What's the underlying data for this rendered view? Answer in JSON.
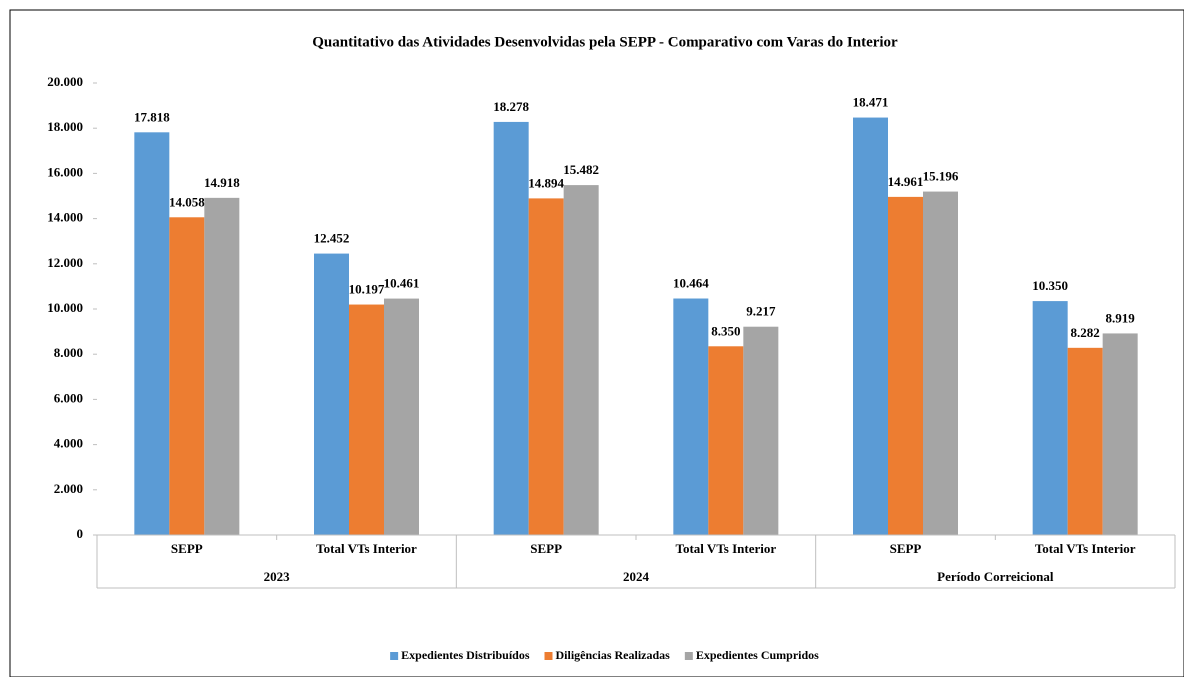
{
  "chart_data": {
    "type": "bar",
    "title": "Quantitativo das Atividades Desenvolvidas pela SEPP - Comparativo com Varas do Interior",
    "categories": [
      "SEPP",
      "Total VTs Interior",
      "SEPP",
      "Total VTs Interior",
      "SEPP",
      "Total VTs Interior"
    ],
    "category_groups": [
      "2023",
      "2024",
      "Período Correicional"
    ],
    "series": [
      {
        "name": "Expedientes Distribuídos",
        "color": "#5b9bd5",
        "values": [
          17818,
          12452,
          18278,
          10464,
          18471,
          10350
        ],
        "value_labels": [
          "17.818",
          "12.452",
          "18.278",
          "10.464",
          "18.471",
          "10.350"
        ]
      },
      {
        "name": "Diligências Realizadas",
        "color": "#ed7d31",
        "values": [
          14058,
          10197,
          14894,
          8350,
          14961,
          8282
        ],
        "value_labels": [
          "14.058",
          "10.197",
          "14.894",
          "8.350",
          "14.961",
          "8.282"
        ]
      },
      {
        "name": "Expedientes Cumpridos",
        "color": "#a5a5a5",
        "values": [
          14918,
          10461,
          15482,
          9217,
          15196,
          8919
        ],
        "value_labels": [
          "14.918",
          "10.461",
          "15.482",
          "9.217",
          "15.196",
          "8.919"
        ]
      }
    ],
    "ylim": [
      0,
      20000
    ],
    "yticks": [
      0,
      {
        "value": 2000,
        "label": "2.000"
      },
      {
        "value": 4000,
        "label": "4.000"
      },
      {
        "value": 6000,
        "label": "6.000"
      },
      {
        "value": 8000,
        "label": "8.000"
      },
      {
        "value": 10000,
        "label": "10.000"
      },
      {
        "value": 12000,
        "label": "12.000"
      },
      {
        "value": 14000,
        "label": "14.000"
      },
      {
        "value": 16000,
        "label": "16.000"
      },
      {
        "value": 18000,
        "label": "18.000"
      },
      {
        "value": 20000,
        "label": "20.000"
      }
    ],
    "grid": false,
    "legend": "bottom"
  }
}
